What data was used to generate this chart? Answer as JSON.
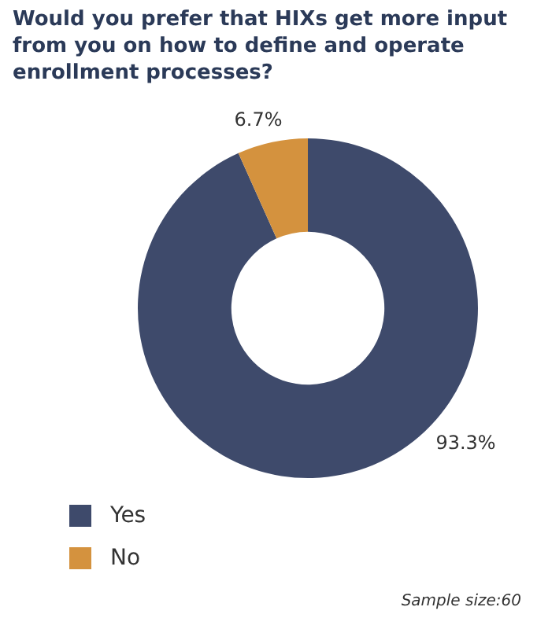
{
  "chart_data": {
    "type": "donut",
    "title": "Would you prefer that HIXs get more input from you on how to define and operate enrollment processes?",
    "categories": [
      "Yes",
      "No"
    ],
    "values": [
      93.3,
      6.7
    ],
    "colors": [
      "#3e4a6b",
      "#d4923e"
    ],
    "value_labels": [
      "93.3%",
      "6.7%"
    ],
    "legend": "bottom left",
    "annotations": [
      "Sample size:60"
    ]
  }
}
